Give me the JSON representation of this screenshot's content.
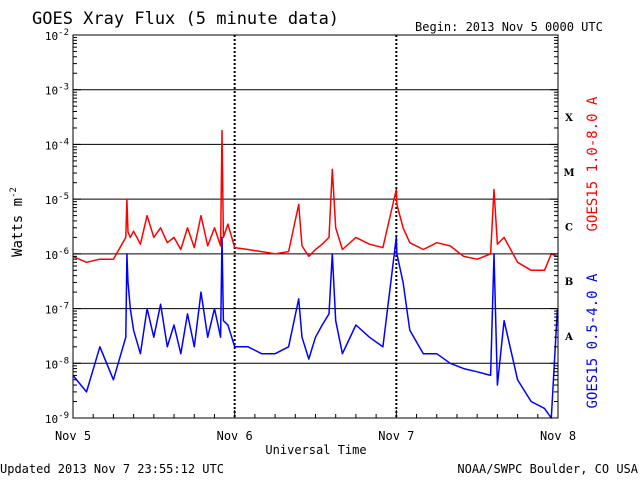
{
  "title": "GOES Xray Flux (5 minute data)",
  "begin": "Begin:  2013 Nov 5 0000 UTC",
  "updated": "Updated 2013 Nov  7 23:55:12 UTC",
  "credit": "NOAA/SWPC Boulder, CO USA",
  "chart_data": {
    "type": "line",
    "title": "GOES Xray Flux (5 minute data)",
    "xlabel": "Universal Time",
    "ylabel": "Watts m",
    "ylabel_sup": "-2",
    "yscale": "log",
    "ylim": [
      1e-09,
      0.01
    ],
    "xlim": [
      "2013-11-05",
      "2013-11-08"
    ],
    "x_ticks": [
      "Nov 5",
      "Nov 6",
      "Nov 7",
      "Nov 8"
    ],
    "y_ticks": [
      {
        "value": 1e-09,
        "mantissa": "10",
        "exp": "-9"
      },
      {
        "value": 1e-08,
        "mantissa": "10",
        "exp": "-8"
      },
      {
        "value": 1e-07,
        "mantissa": "10",
        "exp": "-7"
      },
      {
        "value": 1e-06,
        "mantissa": "10",
        "exp": "-6"
      },
      {
        "value": 1e-05,
        "mantissa": "10",
        "exp": "-5"
      },
      {
        "value": 0.0001,
        "mantissa": "10",
        "exp": "-4"
      },
      {
        "value": 0.001,
        "mantissa": "10",
        "exp": "-3"
      },
      {
        "value": 0.01,
        "mantissa": "10",
        "exp": "-2"
      }
    ],
    "flare_classes": [
      {
        "label": "A",
        "flux": 1e-08
      },
      {
        "label": "B",
        "flux": 1e-07
      },
      {
        "label": "C",
        "flux": 1e-06
      },
      {
        "label": "M",
        "flux": 1e-05
      },
      {
        "label": "X",
        "flux": 0.0001
      }
    ],
    "series": [
      {
        "name": "GOES15 1.0-8.0 A",
        "color": "#ff0000",
        "x": [
          "2013-11-05 00:00",
          "2013-11-05 02:00",
          "2013-11-05 04:00",
          "2013-11-05 06:00",
          "2013-11-05 07:50",
          "2013-11-05 08:00",
          "2013-11-05 08:10",
          "2013-11-05 08:30",
          "2013-11-05 09:00",
          "2013-11-05 10:00",
          "2013-11-05 11:00",
          "2013-11-05 12:00",
          "2013-11-05 13:00",
          "2013-11-05 14:00",
          "2013-11-05 15:00",
          "2013-11-05 16:00",
          "2013-11-05 17:00",
          "2013-11-05 18:00",
          "2013-11-05 19:00",
          "2013-11-05 20:00",
          "2013-11-05 21:00",
          "2013-11-05 21:55",
          "2013-11-05 22:07",
          "2013-11-05 22:20",
          "2013-11-05 23:00",
          "2013-11-06 00:00",
          "2013-11-06 02:00",
          "2013-11-06 04:00",
          "2013-11-06 06:00",
          "2013-11-06 08:00",
          "2013-11-06 09:30",
          "2013-11-06 10:00",
          "2013-11-06 11:00",
          "2013-11-06 12:00",
          "2013-11-06 13:00",
          "2013-11-06 14:00",
          "2013-11-06 14:30",
          "2013-11-06 15:00",
          "2013-11-06 16:00",
          "2013-11-06 18:00",
          "2013-11-06 20:00",
          "2013-11-06 22:00",
          "2013-11-07 00:00",
          "2013-11-07 00:05",
          "2013-11-07 01:00",
          "2013-11-07 02:00",
          "2013-11-07 04:00",
          "2013-11-07 06:00",
          "2013-11-07 08:00",
          "2013-11-07 10:00",
          "2013-11-07 12:00",
          "2013-11-07 14:00",
          "2013-11-07 14:30",
          "2013-11-07 15:00",
          "2013-11-07 16:00",
          "2013-11-07 18:00",
          "2013-11-07 20:00",
          "2013-11-07 22:00",
          "2013-11-07 23:00",
          "2013-11-07 23:55"
        ],
        "values": [
          9e-07,
          7e-07,
          8e-07,
          8e-07,
          2e-06,
          1e-05,
          2.5e-06,
          2e-06,
          2.6e-06,
          1.5e-06,
          5e-06,
          2e-06,
          3e-06,
          1.6e-06,
          2e-06,
          1.2e-06,
          3e-06,
          1.3e-06,
          5e-06,
          1.4e-06,
          3e-06,
          1.4e-06,
          0.00018,
          2e-06,
          3.5e-06,
          1.3e-06,
          1.2e-06,
          1.1e-06,
          1e-06,
          1.1e-06,
          8e-06,
          1.4e-06,
          9e-07,
          1.2e-06,
          1.5e-06,
          2e-06,
          3.5e-05,
          3e-06,
          1.2e-06,
          2e-06,
          1.5e-06,
          1.3e-06,
          1.5e-05,
          8e-06,
          3e-06,
          1.6e-06,
          1.2e-06,
          1.6e-06,
          1.4e-06,
          9e-07,
          8e-07,
          1e-06,
          1.5e-05,
          1.5e-06,
          2e-06,
          7e-07,
          5e-07,
          5e-07,
          1e-06,
          9e-07
        ]
      },
      {
        "name": "GOES15 0.5-4.0 A",
        "color": "#0000ff",
        "x": [
          "2013-11-05 00:00",
          "2013-11-05 02:00",
          "2013-11-05 04:00",
          "2013-11-05 06:00",
          "2013-11-05 07:50",
          "2013-11-05 08:00",
          "2013-11-05 08:10",
          "2013-11-05 08:30",
          "2013-11-05 09:00",
          "2013-11-05 10:00",
          "2013-11-05 11:00",
          "2013-11-05 12:00",
          "2013-11-05 13:00",
          "2013-11-05 14:00",
          "2013-11-05 15:00",
          "2013-11-05 16:00",
          "2013-11-05 17:00",
          "2013-11-05 18:00",
          "2013-11-05 19:00",
          "2013-11-05 20:00",
          "2013-11-05 21:00",
          "2013-11-05 21:55",
          "2013-11-05 22:07",
          "2013-11-05 22:20",
          "2013-11-05 23:00",
          "2013-11-06 00:00",
          "2013-11-06 02:00",
          "2013-11-06 04:00",
          "2013-11-06 06:00",
          "2013-11-06 08:00",
          "2013-11-06 09:30",
          "2013-11-06 10:00",
          "2013-11-06 11:00",
          "2013-11-06 12:00",
          "2013-11-06 13:00",
          "2013-11-06 14:00",
          "2013-11-06 14:30",
          "2013-11-06 15:00",
          "2013-11-06 16:00",
          "2013-11-06 18:00",
          "2013-11-06 20:00",
          "2013-11-06 22:00",
          "2013-11-07 00:00",
          "2013-11-07 00:05",
          "2013-11-07 01:00",
          "2013-11-07 02:00",
          "2013-11-07 04:00",
          "2013-11-07 06:00",
          "2013-11-07 08:00",
          "2013-11-07 10:00",
          "2013-11-07 12:00",
          "2013-11-07 14:00",
          "2013-11-07 14:30",
          "2013-11-07 15:00",
          "2013-11-07 16:00",
          "2013-11-07 18:00",
          "2013-11-07 20:00",
          "2013-11-07 22:00",
          "2013-11-07 23:00",
          "2013-11-07 23:55"
        ],
        "values": [
          6e-09,
          3e-09,
          2e-08,
          5e-09,
          3e-08,
          1e-06,
          3e-07,
          1e-07,
          4e-08,
          1.5e-08,
          1e-07,
          3e-08,
          1.2e-07,
          2e-08,
          5e-08,
          1.5e-08,
          8e-08,
          2e-08,
          2e-07,
          3e-08,
          1e-07,
          3e-08,
          2e-06,
          6e-08,
          5e-08,
          2e-08,
          2e-08,
          1.5e-08,
          1.5e-08,
          2e-08,
          1.5e-07,
          3e-08,
          1.2e-08,
          3e-08,
          5e-08,
          8e-08,
          1e-06,
          6e-08,
          1.5e-08,
          5e-08,
          3e-08,
          2e-08,
          2e-06,
          1e-06,
          3e-07,
          4e-08,
          1.5e-08,
          1.5e-08,
          1e-08,
          8e-09,
          7e-09,
          6e-09,
          1e-06,
          4e-09,
          6e-08,
          5e-09,
          2e-09,
          1.5e-09,
          1e-09,
          1e-07
        ]
      }
    ]
  }
}
